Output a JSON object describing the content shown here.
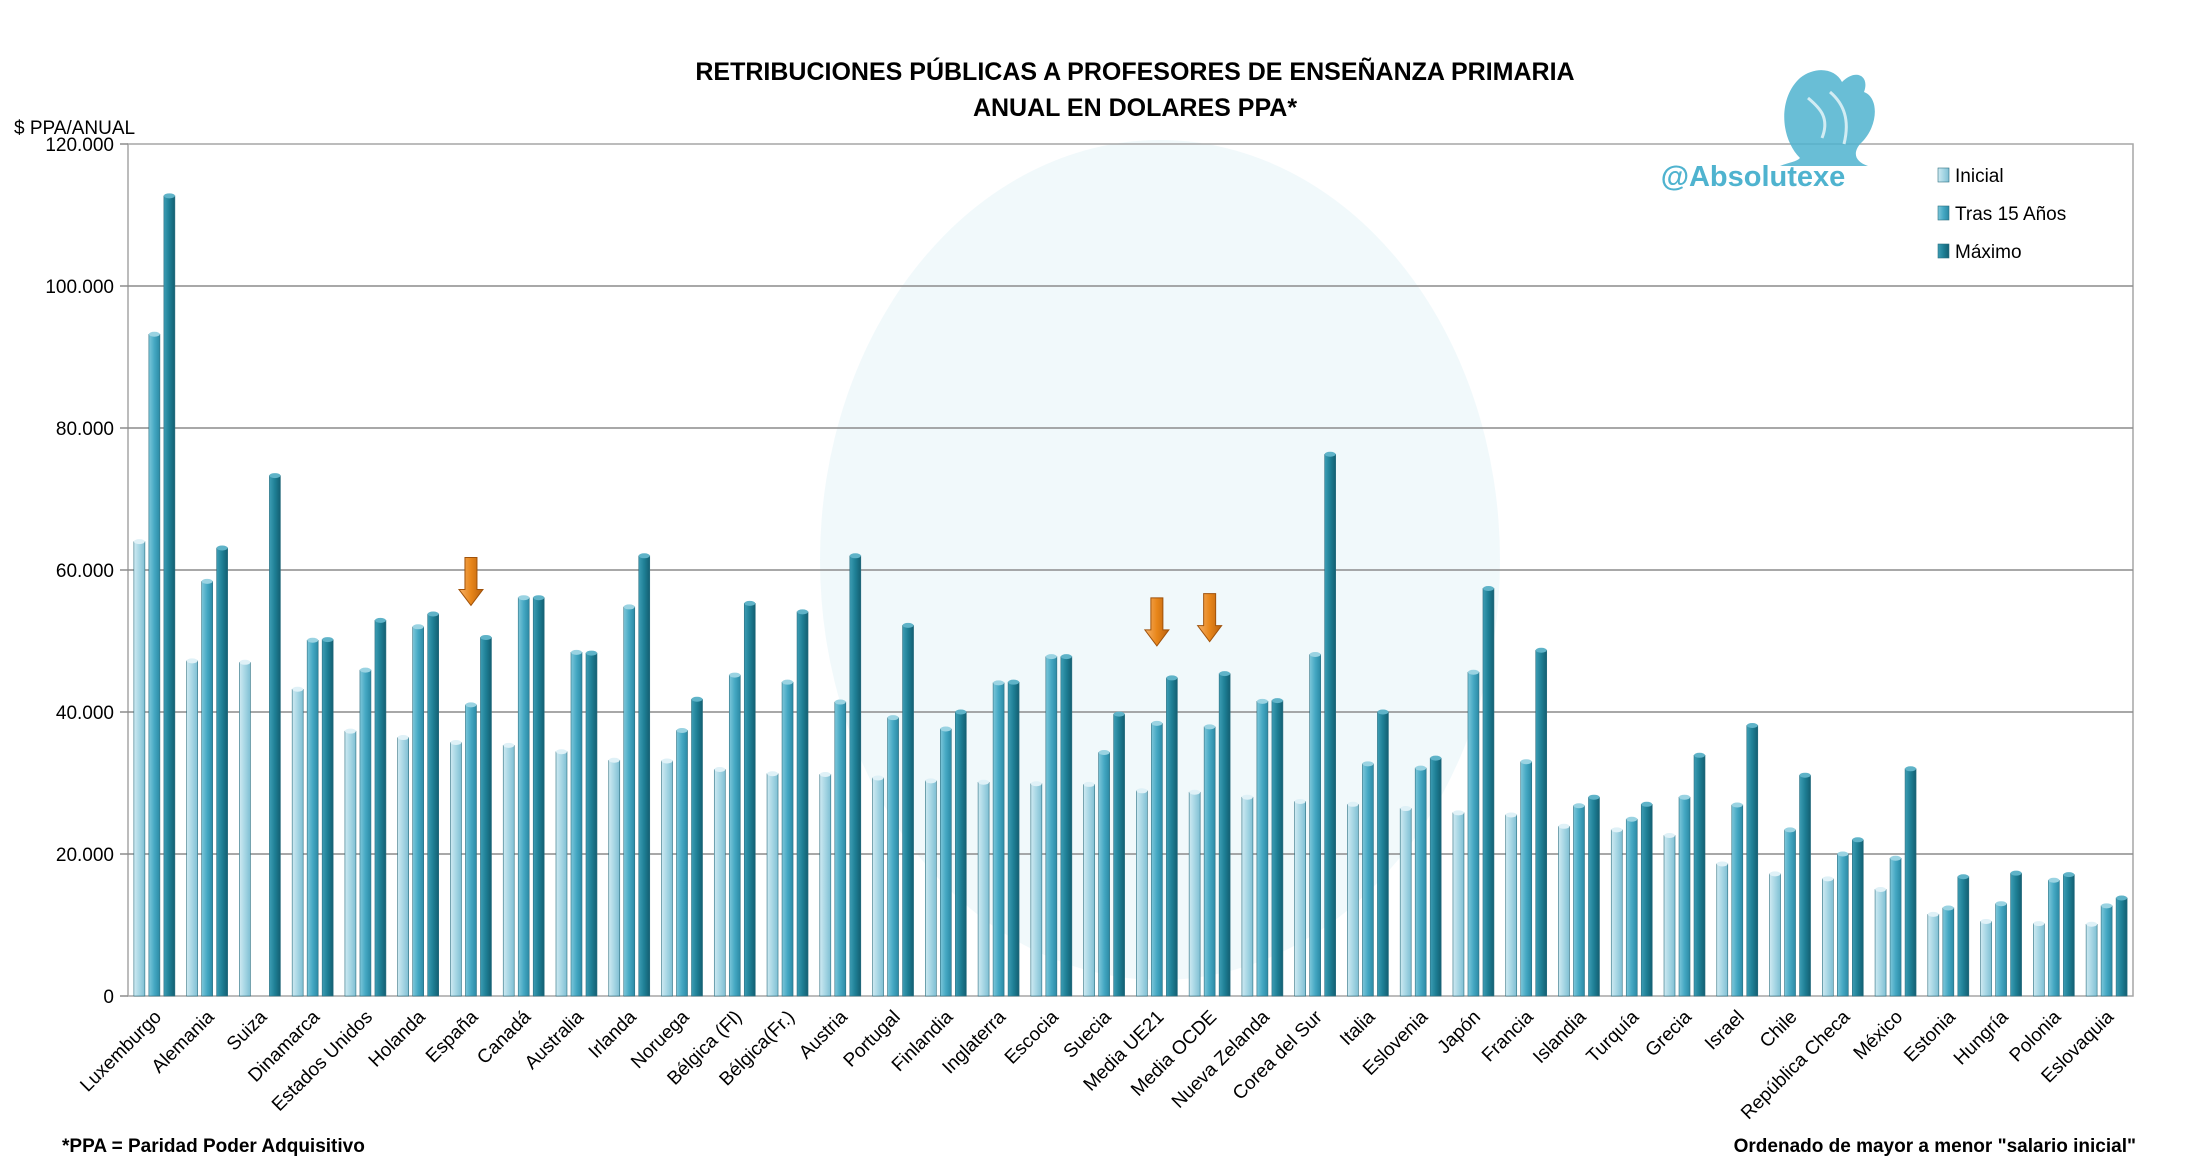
{
  "chart_data": {
    "type": "bar",
    "title": [
      "RETRIBUCIONES PÚBLICAS A PROFESORES DE ENSEÑANZA PRIMARIA",
      "ANUAL EN DOLARES PPA*"
    ],
    "ylabel": "$ PPA/ANUAL",
    "ylim": [
      0,
      120000
    ],
    "yticks": [
      0,
      20000,
      40000,
      60000,
      80000,
      100000,
      120000
    ],
    "ytick_labels": [
      "0",
      "20.000",
      "40.000",
      "60.000",
      "80.000",
      "100.000",
      "120.000"
    ],
    "grid": true,
    "legend_position": "top-right",
    "categories": [
      "Luxemburgo",
      "Alemania",
      "Suiza",
      "Dinamarca",
      "Estados Unidos",
      "Holanda",
      "España",
      "Canadá",
      "Australia",
      "Irlanda",
      "Noruega",
      "Bélgica (Fl)",
      "Bélgica(Fr.)",
      "Austria",
      "Portugal",
      "Finlandia",
      "Inglaterra",
      "Escocia",
      "Suecia",
      "Media UE21",
      "Media OCDE",
      "Nueva Zelanda",
      "Corea del Sur",
      "Italia",
      "Eslovenia",
      "Japón",
      "Francia",
      "Islandia",
      "Turquía",
      "Grecia",
      "Israel",
      "Chile",
      "República Checa",
      "México",
      "Estonia",
      "Hungría",
      "Polonia",
      "Eslovaquia"
    ],
    "series": [
      {
        "name": "Inicial",
        "color": "#a6d6e4",
        "values": [
          64000,
          47200,
          47000,
          43200,
          37300,
          36400,
          35700,
          35300,
          34400,
          33200,
          33100,
          31900,
          31300,
          31200,
          30700,
          30300,
          30100,
          29900,
          29800,
          28900,
          28700,
          28000,
          27400,
          27000,
          26400,
          25800,
          25500,
          23900,
          23400,
          22600,
          18600,
          17200,
          16500,
          15000,
          11500,
          10500,
          10200,
          10100
        ]
      },
      {
        "name": "Tras 15 Años",
        "color": "#45a8c3",
        "values": [
          93200,
          58400,
          0,
          50100,
          45900,
          52000,
          41000,
          56100,
          48400,
          54800,
          37400,
          45200,
          44200,
          41400,
          39200,
          37600,
          44100,
          47800,
          34300,
          38400,
          37900,
          41500,
          48100,
          32700,
          32100,
          45600,
          33000,
          26800,
          24900,
          28000,
          26900,
          23400,
          20000,
          19400,
          12400,
          13000,
          16300,
          12700
        ]
      },
      {
        "name": "Máximo",
        "color": "#1e7f95",
        "values": [
          112700,
          63100,
          73300,
          50200,
          52900,
          53800,
          50500,
          56100,
          48300,
          62000,
          41800,
          55300,
          54100,
          62000,
          52200,
          40000,
          44200,
          47800,
          39700,
          44800,
          45400,
          41600,
          76300,
          40000,
          33500,
          57400,
          48700,
          28000,
          27000,
          33900,
          38100,
          31100,
          22000,
          32000,
          16800,
          17300,
          17100,
          13800
        ]
      }
    ],
    "annotations": {
      "highlighted_categories": [
        "España",
        "Media UE21",
        "Media OCDE"
      ],
      "arrow_color": "#e8861a"
    }
  },
  "watermark": {
    "handle": "@Absolutexe",
    "icon": "griffin-logo-icon",
    "color": "#4fb3cf"
  },
  "footnote_left": "*PPA = Paridad Poder Adquisitivo",
  "footnote_right": "Ordenado de mayor a menor \"salario inicial\""
}
